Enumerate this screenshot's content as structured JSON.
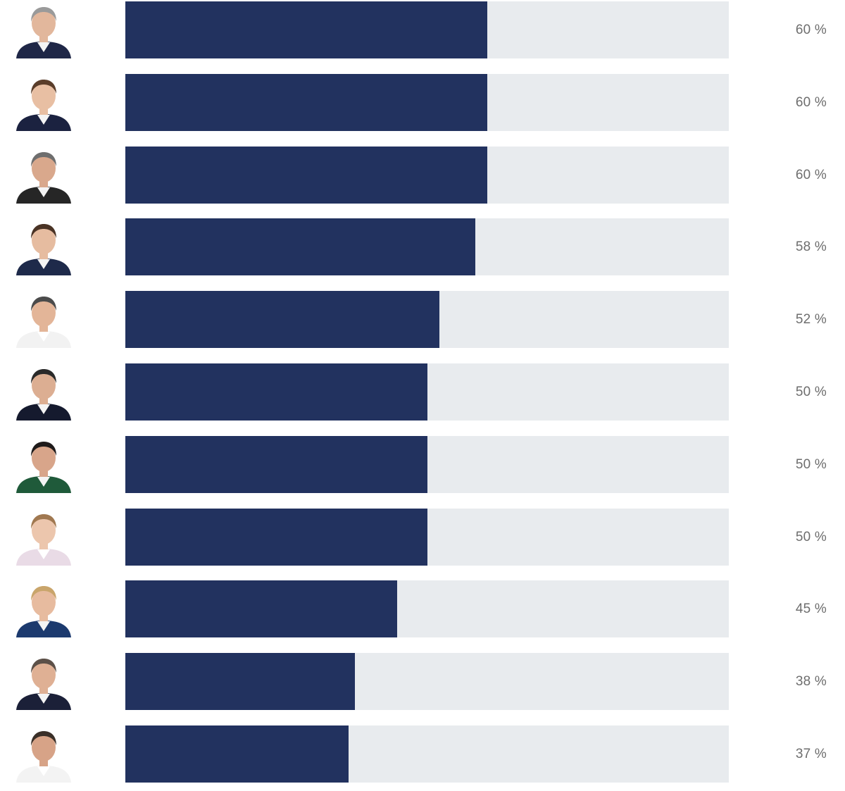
{
  "chart_data": {
    "type": "bar",
    "orientation": "horizontal",
    "xlim": [
      0,
      100
    ],
    "grid": false,
    "legend": "none",
    "colors": {
      "bar": "#22325f",
      "track": "#e8ebee",
      "label": "#6d6d6d"
    },
    "rows": [
      {
        "value": 60,
        "label": "60 %",
        "avatar": "portrait-man-gray-hair-suit"
      },
      {
        "value": 60,
        "label": "60 %",
        "avatar": "portrait-man-smiling-suit"
      },
      {
        "value": 60,
        "label": "60 %",
        "avatar": "portrait-man-beard-glasses"
      },
      {
        "value": 58,
        "label": "58 %",
        "avatar": "portrait-man-suit"
      },
      {
        "value": 52,
        "label": "52 %",
        "avatar": "portrait-man-glasses-white-shirt"
      },
      {
        "value": 50,
        "label": "50 %",
        "avatar": "portrait-man-dark-suit"
      },
      {
        "value": 50,
        "label": "50 %",
        "avatar": "portrait-woman-green-jacket"
      },
      {
        "value": 50,
        "label": "50 %",
        "avatar": "portrait-woman-glasses"
      },
      {
        "value": 45,
        "label": "45 %",
        "avatar": "portrait-man-blond-suit"
      },
      {
        "value": 38,
        "label": "38 %",
        "avatar": "portrait-man-bald-glasses"
      },
      {
        "value": 37,
        "label": "37 %",
        "avatar": "portrait-man-white-shirt"
      }
    ]
  }
}
